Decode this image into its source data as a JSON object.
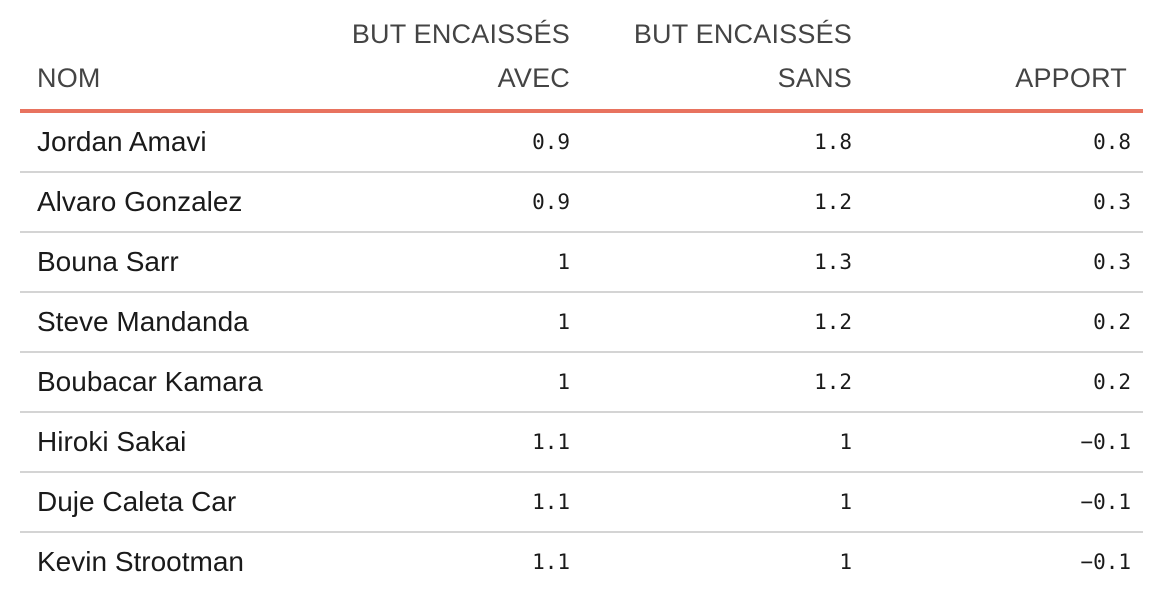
{
  "table": {
    "headers": {
      "name": "NOM",
      "avec_line1": "BUT ENCAISSÉS",
      "avec_line2": "AVEC",
      "sans_line1": "BUT ENCAISSÉS",
      "sans_line2": "SANS",
      "apport": "APPORT"
    },
    "accent_color": "#e8735f",
    "rows": [
      {
        "name": "Jordan Amavi",
        "avec": "0.9",
        "sans": "1.8",
        "apport": "0.8"
      },
      {
        "name": "Alvaro Gonzalez",
        "avec": "0.9",
        "sans": "1.2",
        "apport": "0.3"
      },
      {
        "name": "Bouna Sarr",
        "avec": "1",
        "sans": "1.3",
        "apport": "0.3"
      },
      {
        "name": "Steve Mandanda",
        "avec": "1",
        "sans": "1.2",
        "apport": "0.2"
      },
      {
        "name": "Boubacar Kamara",
        "avec": "1",
        "sans": "1.2",
        "apport": "0.2"
      },
      {
        "name": "Hiroki Sakai",
        "avec": "1.1",
        "sans": "1",
        "apport": "−0.1"
      },
      {
        "name": "Duje Caleta Car",
        "avec": "1.1",
        "sans": "1",
        "apport": "−0.1"
      },
      {
        "name": "Kevin Strootman",
        "avec": "1.1",
        "sans": "1",
        "apport": "−0.1"
      }
    ]
  }
}
